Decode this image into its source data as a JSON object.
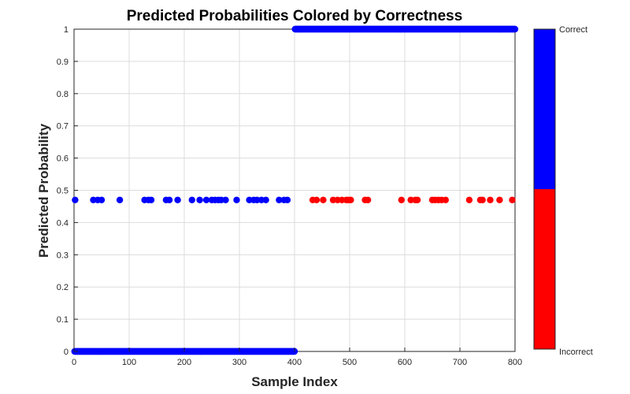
{
  "chart_data": {
    "type": "scatter",
    "title": "Predicted Probabilities Colored by Correctness",
    "xlabel": "Sample Index",
    "ylabel": "Predicted Probability",
    "xlim": [
      0,
      800
    ],
    "ylim": [
      0,
      1
    ],
    "xticks": [
      "0",
      "100",
      "200",
      "300",
      "400",
      "500",
      "600",
      "700",
      "800"
    ],
    "yticks": [
      "0",
      "0.1",
      "0.2",
      "0.3",
      "0.4",
      "0.5",
      "0.6",
      "0.7",
      "0.8",
      "0.9",
      "1"
    ],
    "grid": true,
    "colors": {
      "correct": "#0000ff",
      "incorrect": "#ff0000"
    },
    "colorbar": {
      "placement": "right",
      "labels": {
        "top": "Correct",
        "bottom": "Incorrect"
      }
    },
    "series": [
      {
        "category": "correct",
        "x_range": [
          1,
          400
        ],
        "y": 0,
        "note_dense": true
      },
      {
        "category": "correct",
        "x_range": [
          401,
          800
        ],
        "y": 1,
        "note_dense": true
      },
      {
        "category": "correct",
        "points": [
          [
            2,
            0.47
          ],
          [
            35,
            0.47
          ],
          [
            43,
            0.47
          ],
          [
            50,
            0.47
          ],
          [
            83,
            0.47
          ],
          [
            128,
            0.47
          ],
          [
            135,
            0.47
          ],
          [
            140,
            0.47
          ],
          [
            167,
            0.47
          ],
          [
            173,
            0.47
          ],
          [
            188,
            0.47
          ],
          [
            214,
            0.47
          ],
          [
            228,
            0.47
          ],
          [
            240,
            0.47
          ],
          [
            250,
            0.47
          ],
          [
            256,
            0.47
          ],
          [
            262,
            0.47
          ],
          [
            267,
            0.47
          ],
          [
            275,
            0.47
          ],
          [
            295,
            0.47
          ],
          [
            318,
            0.47
          ],
          [
            326,
            0.47
          ],
          [
            332,
            0.47
          ],
          [
            340,
            0.47
          ],
          [
            348,
            0.47
          ],
          [
            372,
            0.47
          ],
          [
            381,
            0.47
          ],
          [
            387,
            0.47
          ]
        ]
      },
      {
        "category": "incorrect",
        "points": [
          [
            433,
            0.47
          ],
          [
            440,
            0.47
          ],
          [
            452,
            0.47
          ],
          [
            470,
            0.47
          ],
          [
            478,
            0.47
          ],
          [
            486,
            0.47
          ],
          [
            494,
            0.47
          ],
          [
            498,
            0.47
          ],
          [
            502,
            0.47
          ],
          [
            528,
            0.47
          ],
          [
            533,
            0.47
          ],
          [
            594,
            0.47
          ],
          [
            611,
            0.47
          ],
          [
            619,
            0.47
          ],
          [
            623,
            0.47
          ],
          [
            650,
            0.47
          ],
          [
            655,
            0.47
          ],
          [
            661,
            0.47
          ],
          [
            667,
            0.47
          ],
          [
            674,
            0.47
          ],
          [
            717,
            0.47
          ],
          [
            737,
            0.47
          ],
          [
            741,
            0.47
          ],
          [
            755,
            0.47
          ],
          [
            772,
            0.47
          ],
          [
            795,
            0.47
          ]
        ]
      }
    ]
  }
}
